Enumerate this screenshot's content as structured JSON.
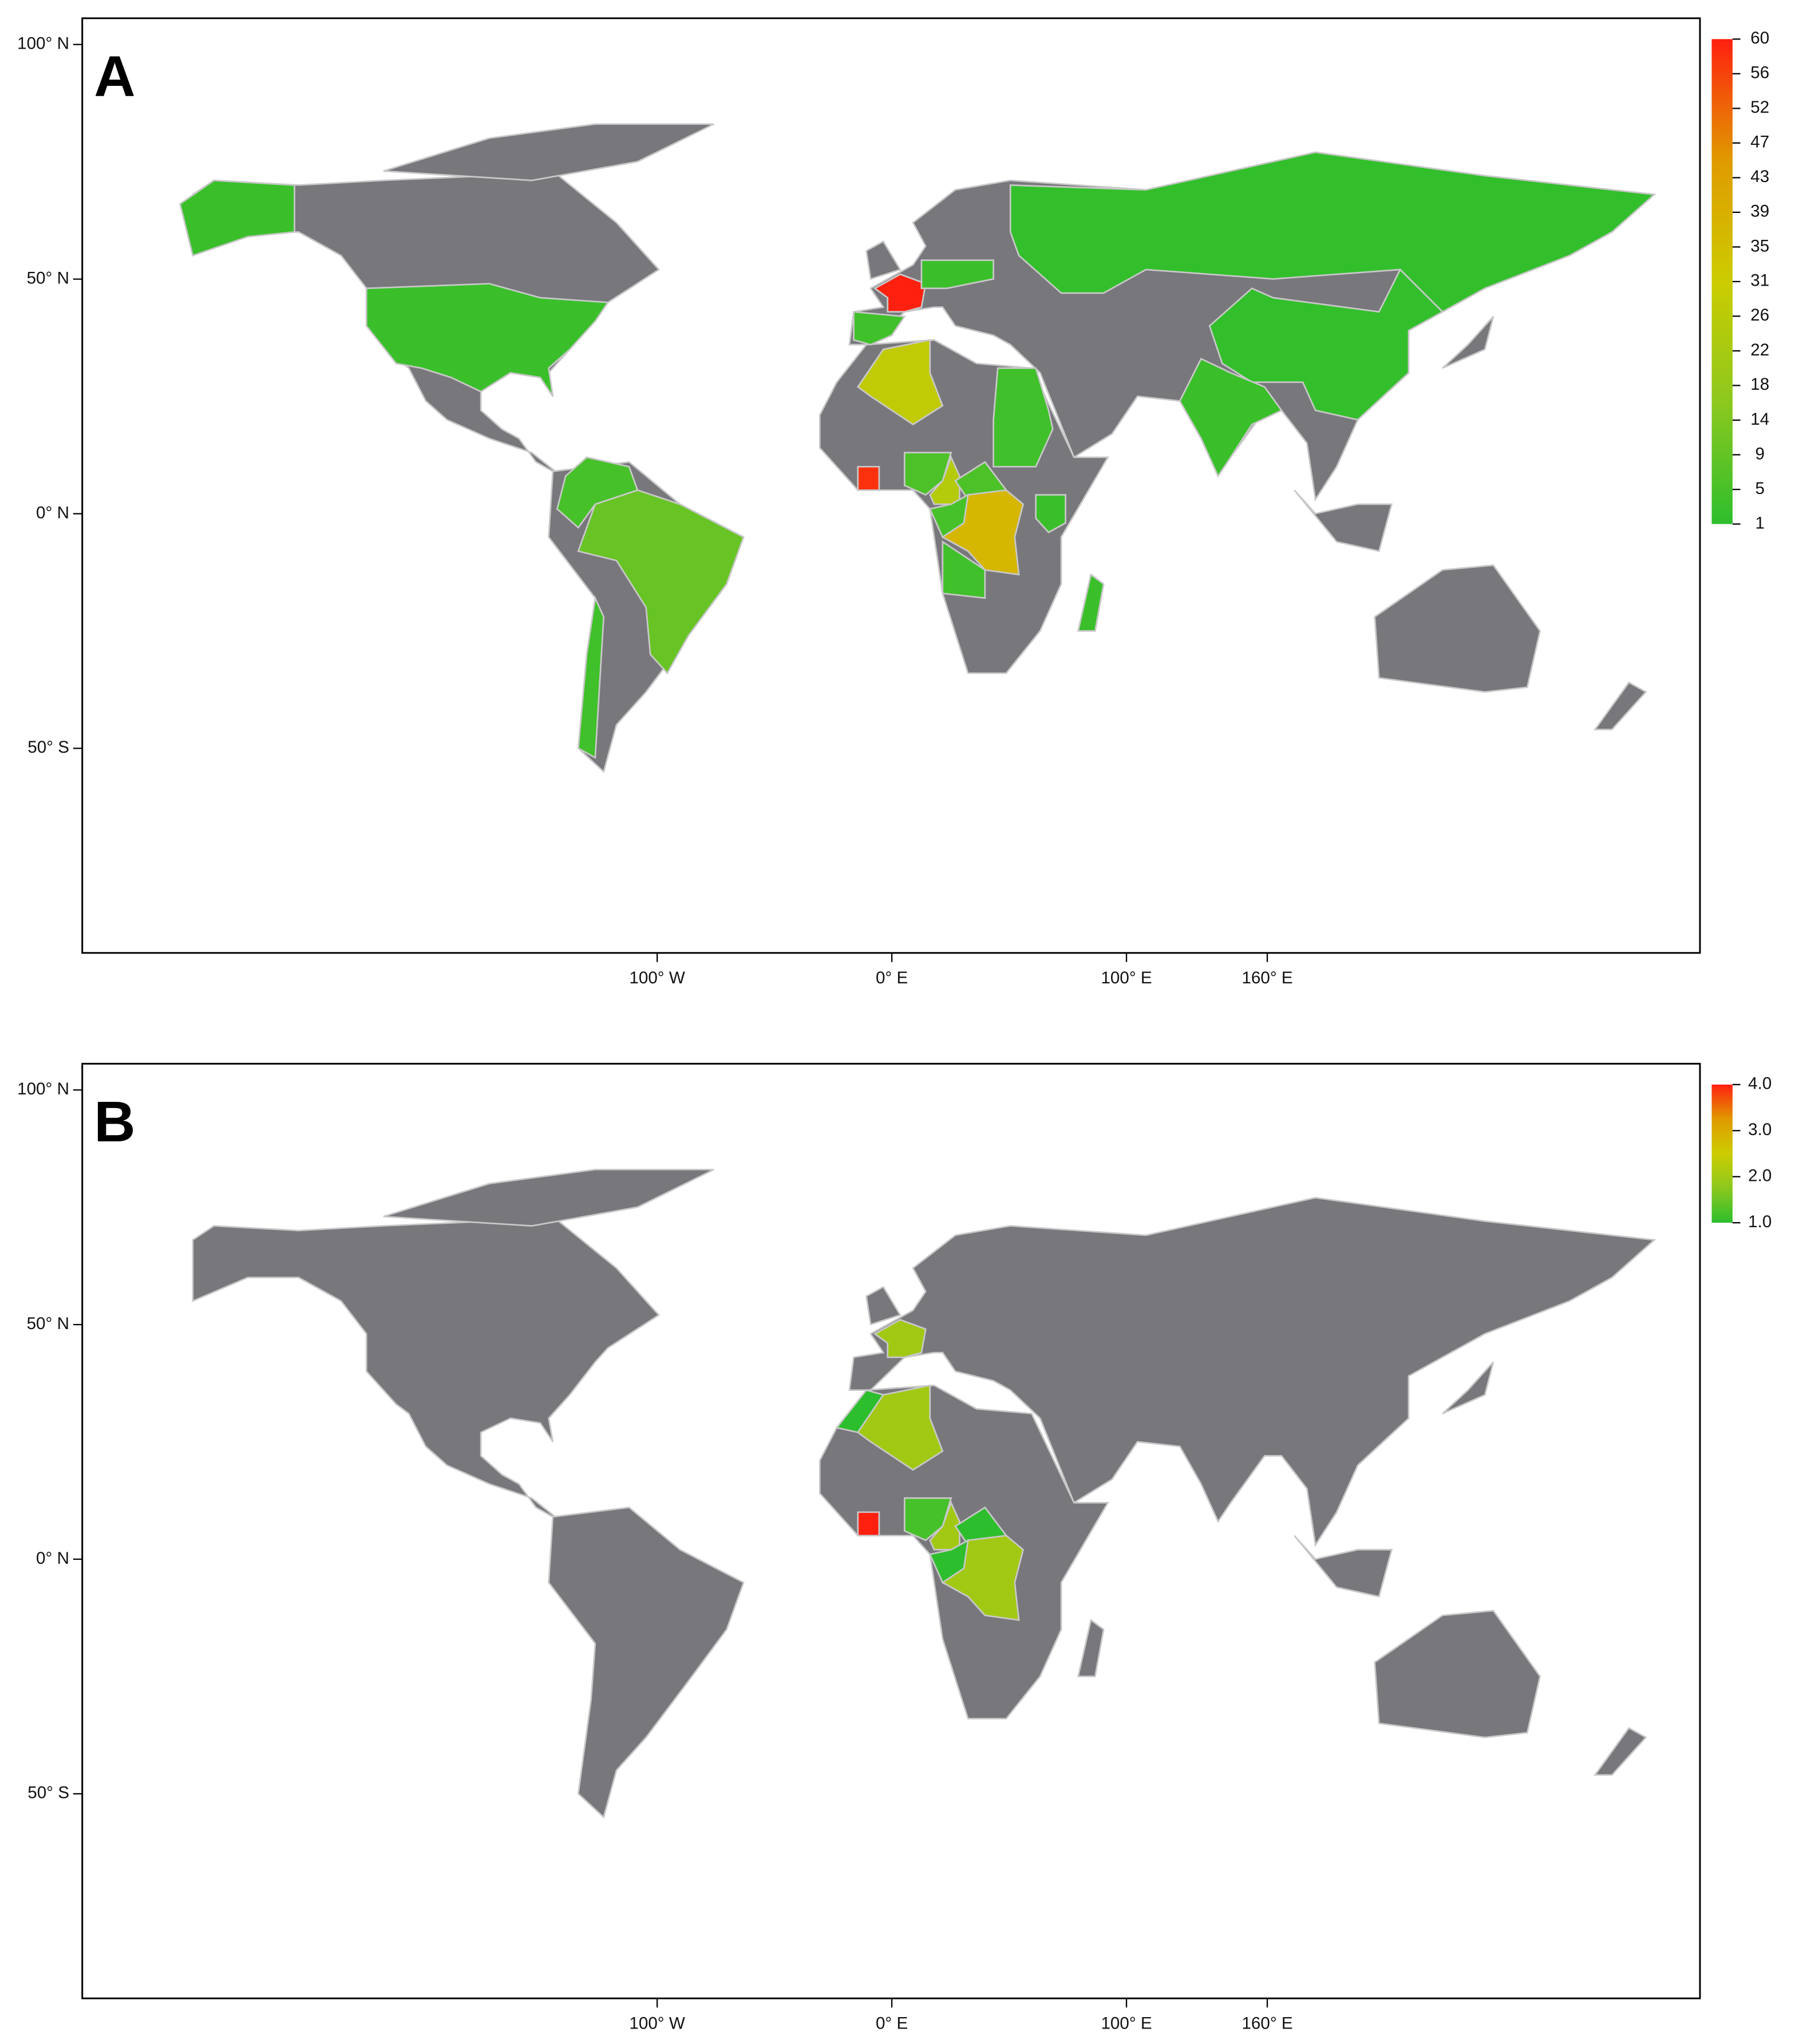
{
  "chart_data": [
    {
      "type": "choropleth",
      "panel_label": "A",
      "values": [
        3,
        3,
        10,
        5,
        4,
        2,
        2,
        3,
        60,
        4,
        3,
        28,
        58,
        6,
        25,
        6,
        37,
        5,
        4,
        4,
        3,
        3
      ],
      "color_scale": [
        "#2dbe2d",
        "#8cc81e",
        "#cccc00",
        "#e09a00",
        "#ff2010"
      ],
      "colorbar_lim": [
        1,
        60
      ],
      "colorbar_ticks": [
        60,
        {
          "value": 55.79,
          "label": "56"
        },
        {
          "value": 51.57,
          "label": "52"
        },
        {
          "value": 47.36,
          "label": "47"
        },
        {
          "value": 43.14,
          "label": "43"
        },
        {
          "value": 38.93,
          "label": "39"
        },
        {
          "value": 34.71,
          "label": "35"
        },
        {
          "value": 30.5,
          "label": "31"
        },
        {
          "value": 26.29,
          "label": "26"
        },
        {
          "value": 22.07,
          "label": "22"
        },
        {
          "value": 17.86,
          "label": "18"
        },
        {
          "value": 13.64,
          "label": "14"
        },
        {
          "value": 9.43,
          "label": "9"
        },
        {
          "value": 5.21,
          "label": "5"
        },
        1
      ],
      "xlim": [
        -345,
        344.4
      ],
      "ylim": [
        -93.6,
        105.6
      ],
      "xticks": [
        {
          "value": -100,
          "label": "100° W"
        },
        {
          "value": 0,
          "label": "0° E"
        },
        {
          "value": 100,
          "label": "100° E"
        },
        {
          "value": 160,
          "label": "160° E"
        }
      ],
      "yticks": [
        {
          "value": 100,
          "label": "100° N"
        },
        {
          "value": 50,
          "label": "50° N"
        },
        {
          "value": 0,
          "label": "0° N"
        },
        {
          "value": -50,
          "label": "50° S"
        }
      ],
      "land_color": "#78777c",
      "border_color": "#c8c8c8"
    },
    {
      "type": "choropleth",
      "panel_label": "B",
      "values": [
        1.0,
        2.0,
        2.0,
        4.0,
        1.2,
        2.0,
        1.0,
        2.0,
        1.0
      ],
      "color_scale": [
        "#2dbe2d",
        "#8cc81e",
        "#cccc00",
        "#e09a00",
        "#ff2010"
      ],
      "colorbar_lim": [
        1,
        4
      ],
      "colorbar_ticks": [
        {
          "value": 4,
          "label": "4.0"
        },
        {
          "value": 3,
          "label": "3.0"
        },
        {
          "value": 2,
          "label": "2.0"
        },
        {
          "value": 1,
          "label": "1.0"
        }
      ],
      "xlim": [
        -345,
        344.4
      ],
      "ylim": [
        -93.6,
        105.6
      ],
      "xticks": [
        {
          "value": -100,
          "label": "100° W"
        },
        {
          "value": 0,
          "label": "0° E"
        },
        {
          "value": 100,
          "label": "100° E"
        },
        {
          "value": 160,
          "label": "160° E"
        }
      ],
      "yticks": [
        {
          "value": 100,
          "label": "100° N"
        },
        {
          "value": 50,
          "label": "50° N"
        },
        {
          "value": 0,
          "label": "0° N"
        },
        {
          "value": -50,
          "label": "50° S"
        }
      ],
      "land_color": "#78777c",
      "border_color": "#c8c8c8"
    }
  ]
}
